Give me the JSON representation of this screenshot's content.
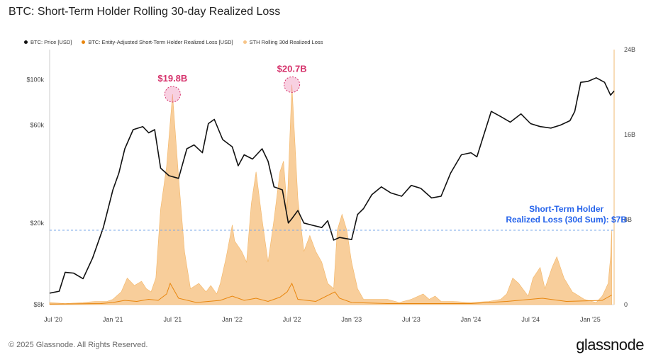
{
  "title": "BTC: Short-Term Holder Rolling 30-day Realized Loss",
  "legend": [
    {
      "label": "BTC: Price [USD]",
      "color": "#111111"
    },
    {
      "label": "BTC: Entity-Adjusted Short-Term Holder Realized Loss [USD]",
      "color": "#e8850c"
    },
    {
      "label": "STH Rolling 30d Realized Loss",
      "color": "#f7c589"
    }
  ],
  "footer": {
    "copyright": "© 2025 Glassnode. All Rights Reserved.",
    "logo": "glassnode"
  },
  "chart_data": {
    "type": "area",
    "x_tick_labels": [
      "Jul '20",
      "Jan '21",
      "Jul '21",
      "Jan '22",
      "Jul '22",
      "Jan '23",
      "Jul '23",
      "Jan '24",
      "Jul '24",
      "Jan '25"
    ],
    "x_tick_dates": [
      2020.5,
      2021.0,
      2021.5,
      2022.0,
      2022.5,
      2023.0,
      2023.5,
      2024.0,
      2024.5,
      2025.0
    ],
    "xlim": [
      2020.47,
      2025.2
    ],
    "y_left": {
      "label": "",
      "scale": "log",
      "ticks": [
        8000,
        20000,
        60000,
        100000
      ],
      "tick_labels": [
        "$8k",
        "$20k",
        "$60k",
        "$100k"
      ],
      "lim": [
        8000,
        140000
      ]
    },
    "y_right": {
      "label": "",
      "ticks": [
        0,
        8,
        16,
        24
      ],
      "tick_labels": [
        "0",
        "8B",
        "16B",
        "24B"
      ],
      "lim": [
        0,
        24
      ]
    },
    "series": [
      {
        "name": "BTC: Price [USD]",
        "axis": "left",
        "color": "#111111",
        "x": [
          2020.47,
          2020.55,
          2020.6,
          2020.67,
          2020.75,
          2020.83,
          2020.92,
          2021.0,
          2021.05,
          2021.1,
          2021.17,
          2021.25,
          2021.3,
          2021.35,
          2021.4,
          2021.47,
          2021.55,
          2021.62,
          2021.68,
          2021.75,
          2021.8,
          2021.85,
          2021.92,
          2022.0,
          2022.05,
          2022.1,
          2022.17,
          2022.25,
          2022.3,
          2022.35,
          2022.42,
          2022.47,
          2022.5,
          2022.55,
          2022.6,
          2022.67,
          2022.75,
          2022.8,
          2022.85,
          2022.9,
          2022.95,
          2023.0,
          2023.05,
          2023.1,
          2023.17,
          2023.25,
          2023.33,
          2023.42,
          2023.5,
          2023.58,
          2023.67,
          2023.75,
          2023.83,
          2023.92,
          2024.0,
          2024.05,
          2024.1,
          2024.17,
          2024.25,
          2024.33,
          2024.42,
          2024.5,
          2024.58,
          2024.67,
          2024.75,
          2024.83,
          2024.87,
          2024.92,
          2024.98,
          2025.05,
          2025.12,
          2025.17,
          2025.2
        ],
        "y": [
          9100,
          9300,
          11500,
          11400,
          10700,
          13500,
          19000,
          29000,
          35000,
          46000,
          57000,
          59000,
          55000,
          57000,
          37000,
          34000,
          33000,
          46000,
          48000,
          44000,
          61000,
          64000,
          51000,
          47000,
          38000,
          43000,
          41000,
          46000,
          40000,
          30000,
          29000,
          20000,
          21000,
          23000,
          20000,
          19500,
          19000,
          20500,
          16500,
          17000,
          16800,
          16600,
          22000,
          23500,
          27500,
          30000,
          28000,
          27000,
          30500,
          29500,
          26500,
          27000,
          35000,
          43000,
          44000,
          42000,
          52000,
          70000,
          66000,
          62000,
          68000,
          61000,
          59000,
          58000,
          60000,
          63000,
          70000,
          97000,
          98000,
          102000,
          97000,
          84000,
          88000
        ]
      },
      {
        "name": "STH Rolling 30d Realized Loss",
        "axis": "right",
        "color": "#f7c589",
        "x": [
          2020.47,
          2020.6,
          2020.75,
          2020.85,
          2020.95,
          2021.0,
          2021.07,
          2021.12,
          2021.18,
          2021.24,
          2021.28,
          2021.32,
          2021.36,
          2021.4,
          2021.45,
          2021.5,
          2021.55,
          2021.6,
          2021.65,
          2021.72,
          2021.78,
          2021.82,
          2021.87,
          2021.9,
          2021.95,
          2022.0,
          2022.02,
          2022.05,
          2022.08,
          2022.12,
          2022.16,
          2022.2,
          2022.25,
          2022.3,
          2022.35,
          2022.4,
          2022.43,
          2022.46,
          2022.5,
          2022.55,
          2022.6,
          2022.65,
          2022.7,
          2022.75,
          2022.8,
          2022.85,
          2022.88,
          2022.92,
          2022.96,
          2023.0,
          2023.05,
          2023.1,
          2023.2,
          2023.3,
          2023.4,
          2023.5,
          2023.6,
          2023.65,
          2023.7,
          2023.75,
          2023.85,
          2024.0,
          2024.15,
          2024.25,
          2024.3,
          2024.35,
          2024.4,
          2024.48,
          2024.52,
          2024.58,
          2024.62,
          2024.68,
          2024.72,
          2024.78,
          2024.85,
          2024.95,
          2025.05,
          2025.1,
          2025.13,
          2025.15,
          2025.17,
          2025.18
        ],
        "y": [
          0.2,
          0.1,
          0.2,
          0.3,
          0.3,
          0.5,
          1.2,
          2.5,
          1.8,
          2.2,
          1.5,
          1.2,
          2.5,
          9.0,
          13.0,
          19.8,
          12.0,
          5.0,
          1.5,
          2.0,
          1.2,
          1.8,
          1.0,
          2.0,
          4.5,
          7.5,
          6.0,
          5.5,
          5.0,
          4.0,
          9.5,
          12.5,
          8.0,
          4.0,
          8.0,
          12.5,
          13.5,
          9.0,
          20.7,
          10.0,
          5.0,
          6.5,
          5.0,
          4.0,
          2.0,
          1.5,
          7.0,
          8.5,
          7.0,
          4.0,
          1.5,
          0.5,
          0.5,
          0.5,
          0.2,
          0.5,
          1.0,
          0.5,
          0.8,
          0.3,
          0.3,
          0.2,
          0.3,
          0.5,
          1.0,
          2.5,
          2.0,
          0.8,
          2.5,
          3.5,
          1.5,
          3.5,
          4.5,
          2.5,
          1.2,
          0.5,
          0.2,
          0.8,
          1.5,
          2.0,
          4.5,
          7.0
        ]
      },
      {
        "name": "BTC: Entity-Adjusted Short-Term Holder Realized Loss [USD]",
        "axis": "right",
        "color": "#e8850c",
        "x": [
          2020.47,
          2020.9,
          2021.0,
          2021.1,
          2021.2,
          2021.3,
          2021.38,
          2021.45,
          2021.48,
          2021.55,
          2021.7,
          2021.9,
          2022.0,
          2022.1,
          2022.2,
          2022.3,
          2022.4,
          2022.46,
          2022.5,
          2022.55,
          2022.7,
          2022.86,
          2022.9,
          2023.0,
          2023.3,
          2023.6,
          2024.0,
          2024.3,
          2024.4,
          2024.6,
          2024.8,
          2025.1,
          2025.18
        ],
        "y": [
          0.05,
          0.1,
          0.2,
          0.4,
          0.3,
          0.5,
          0.4,
          1.0,
          2.0,
          0.6,
          0.2,
          0.4,
          0.8,
          0.4,
          0.6,
          0.3,
          0.7,
          1.2,
          2.0,
          0.5,
          0.3,
          1.2,
          0.6,
          0.2,
          0.1,
          0.1,
          0.1,
          0.3,
          0.4,
          0.6,
          0.3,
          0.4,
          0.9
        ]
      }
    ],
    "annotations": [
      {
        "text": "$19.8B",
        "x": 2021.5,
        "y": 19.8,
        "axis": "right",
        "color": "#d6336c"
      },
      {
        "text": "$20.7B",
        "x": 2022.5,
        "y": 20.7,
        "axis": "right",
        "color": "#d6336c"
      },
      {
        "text": "Short-Term Holder\nRealized Loss (30d Sum): $7B",
        "x": 2024.8,
        "y": 7,
        "axis": "right",
        "color": "#2563eb",
        "reference_line": true
      }
    ]
  }
}
